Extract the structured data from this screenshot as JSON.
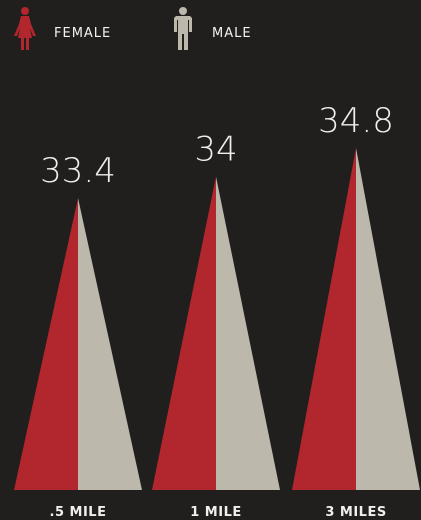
{
  "legend": [
    {
      "label": "FEMALE",
      "icon": "female-icon",
      "color": "#b2262e"
    },
    {
      "label": "MALE",
      "icon": "male-icon",
      "color": "#bcb9ac"
    }
  ],
  "chart_data": {
    "type": "bar",
    "categories": [
      ".5 MILE",
      "1 MILE",
      "3 MILES"
    ],
    "values": [
      33.4,
      34,
      34.8
    ],
    "value_labels": [
      "33.4",
      "34",
      "34.8"
    ],
    "series_colors": {
      "female": "#b2262e",
      "male": "#bcb9ac"
    },
    "title": "",
    "xlabel": "",
    "ylabel": "",
    "grid": false,
    "legend_position": "top-left"
  }
}
